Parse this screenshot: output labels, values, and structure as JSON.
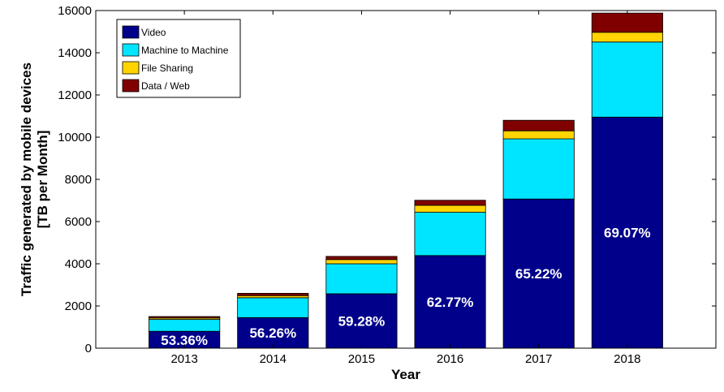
{
  "chart_data": {
    "type": "bar",
    "stacked": true,
    "categories": [
      "2013",
      "2014",
      "2015",
      "2016",
      "2017",
      "2018"
    ],
    "series": [
      {
        "name": "Video",
        "color": "#00008B",
        "values": [
          800,
          1450,
          2580,
          4390,
          7070,
          10950
        ]
      },
      {
        "name": "Machine to Machine",
        "color": "#00E5FF",
        "values": [
          560,
          940,
          1420,
          2050,
          2850,
          3560
        ]
      },
      {
        "name": "File Sharing",
        "color": "#FFD400",
        "values": [
          70,
          100,
          200,
          330,
          380,
          460
        ]
      },
      {
        "name": "Data / Web",
        "color": "#800000",
        "values": [
          70,
          110,
          150,
          240,
          500,
          910
        ]
      }
    ],
    "bar_labels": [
      "53.36%",
      "56.26%",
      "59.28%",
      "62.77%",
      "65.22%",
      "69.07%"
    ],
    "xlabel": "Year",
    "ylabel": "Traffic generated by mobile devices\n[TB per Month]",
    "ylim": [
      0,
      16000
    ],
    "yticks": [
      0,
      2000,
      4000,
      6000,
      8000,
      10000,
      12000,
      14000,
      16000
    ],
    "grid": false,
    "legend_position": "top-left"
  }
}
